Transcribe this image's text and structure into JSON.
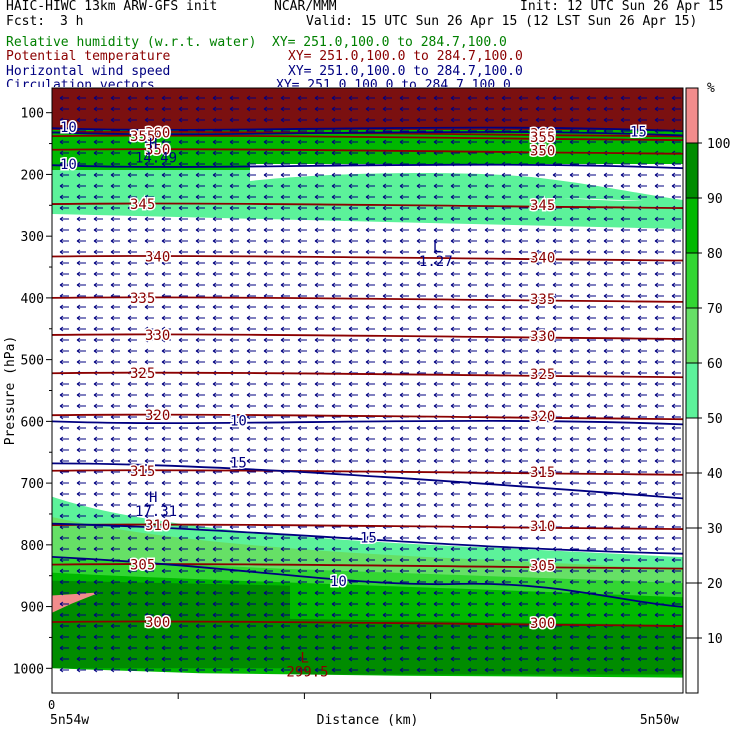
{
  "header": {
    "title_left": "HAIC-HIWC 13km ARW-GFS init",
    "title_org": "NCAR/MMM",
    "init": "Init: 12 UTC Sun 26 Apr 15",
    "fcst_label": "Fcst:",
    "fcst_value": "3 h",
    "valid": "Valid: 15 UTC Sun 26 Apr 15 (12 LST Sun 26 Apr 15)"
  },
  "fields": [
    {
      "name": "Relative humidity (w.r.t. water)",
      "xy": "XY= 251.0,100.0 to 284.7,100.0",
      "color": "#008000"
    },
    {
      "name": "Potential temperature",
      "xy": "XY= 251.0,100.0 to 284.7,100.0",
      "color": "#8b0000"
    },
    {
      "name": "Horizontal wind speed",
      "xy": "XY= 251.0,100.0 to 284.7,100.0",
      "color": "#000080"
    },
    {
      "name": "Circulation vectors",
      "xy": "XY= 251.0,100.0 to 284.7,100.0",
      "color": "#000080"
    }
  ],
  "chart_data": {
    "type": "cross-section",
    "xlabel": "Distance (km)",
    "ylabel": "Pressure (hPa)",
    "x_ticks": [
      "0"
    ],
    "x_end_labels": [
      "5n54w",
      "5n50w"
    ],
    "y_ticks": [
      100,
      200,
      300,
      400,
      500,
      600,
      700,
      800,
      900,
      1000
    ],
    "ylim": [
      1040,
      60
    ],
    "colorbar": {
      "unit": "%",
      "ticks": [
        10,
        20,
        30,
        40,
        50,
        60,
        70,
        80,
        90,
        100
      ],
      "levels": [
        {
          "from": 50,
          "to": 60,
          "color": "#5cf29a"
        },
        {
          "from": 60,
          "to": 70,
          "color": "#66e066"
        },
        {
          "from": 70,
          "to": 80,
          "color": "#33d633"
        },
        {
          "from": 80,
          "to": 90,
          "color": "#00b800"
        },
        {
          "from": 90,
          "to": 100,
          "color": "#008c00"
        },
        {
          "from": 100,
          "to": 110,
          "color": "#f28c8c"
        }
      ]
    },
    "theta_contours": [
      {
        "label": "360",
        "p": 132
      },
      {
        "label": "355",
        "p": 138
      },
      {
        "label": "350",
        "p": 160
      },
      {
        "label": "345",
        "p": 248
      },
      {
        "label": "340",
        "p": 333
      },
      {
        "label": "335",
        "p": 400
      },
      {
        "label": "330",
        "p": 460
      },
      {
        "label": "325",
        "p": 522
      },
      {
        "label": "320",
        "p": 590
      },
      {
        "label": "315",
        "p": 680
      },
      {
        "label": "310",
        "p": 768
      },
      {
        "label": "305",
        "p": 832
      },
      {
        "label": "300",
        "p": 925
      }
    ],
    "wind_contours": [
      {
        "label": "10",
        "p": 125
      },
      {
        "label": "15",
        "p": 132
      },
      {
        "label": "10",
        "p": 185
      },
      {
        "label": "10",
        "p": 600
      },
      {
        "label": "15",
        "p": 668
      },
      {
        "label": "15",
        "p": 790
      },
      {
        "label": "10",
        "p": 860
      }
    ],
    "extrema": [
      {
        "type": "H",
        "value": "14.49",
        "x_frac": 0.16,
        "p": 168
      },
      {
        "type": "L",
        "value": "1.27",
        "x_frac": 0.61,
        "p": 335
      },
      {
        "type": "H",
        "value": "17.31",
        "x_frac": 0.16,
        "p": 740
      },
      {
        "type": "L",
        "value": "299.5",
        "x_frac": 0.4,
        "p": 1000
      }
    ]
  }
}
